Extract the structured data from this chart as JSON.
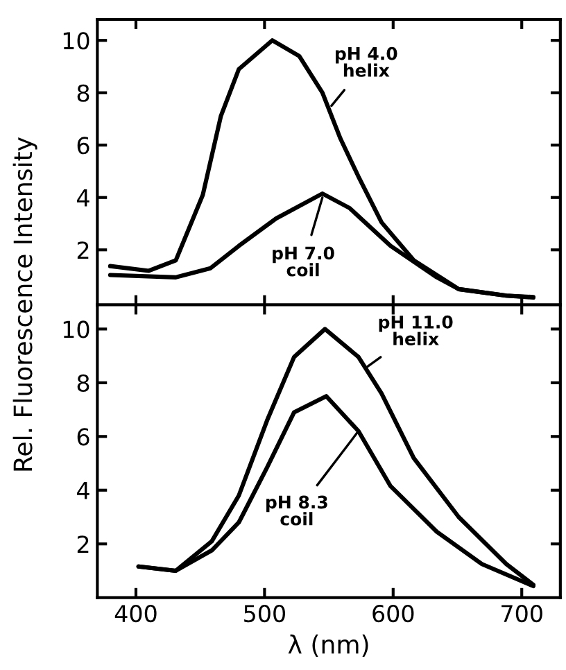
{
  "chart_data": [
    {
      "type": "line",
      "ylabel": "Rel. Fluorescence Intensity",
      "xlim": [
        370,
        730
      ],
      "xticks": [
        400,
        500,
        600,
        700
      ],
      "ylim": [
        -0.1,
        10.8
      ],
      "yticks": [
        2,
        4,
        6,
        8,
        10
      ],
      "tick_labels": "y",
      "grid": false,
      "series": [
        {
          "color": "#000000",
          "x": [
            380,
            410,
            431,
            452,
            466,
            480,
            506,
            527,
            545,
            559,
            573,
            591,
            616,
            651,
            688,
            709
          ],
          "values": [
            1.38,
            1.2,
            1.6,
            4.1,
            7.1,
            8.9,
            10.0,
            9.4,
            8.0,
            6.25,
            4.8,
            3.05,
            1.6,
            0.5,
            0.25,
            0.2
          ]
        },
        {
          "color": "#000000",
          "x": [
            380,
            431,
            458,
            480,
            509,
            545,
            566,
            598,
            634,
            651,
            688,
            709
          ],
          "values": [
            1.04,
            0.95,
            1.3,
            2.15,
            3.2,
            4.15,
            3.6,
            2.15,
            0.95,
            0.5,
            0.25,
            0.18
          ]
        }
      ],
      "annotations": [
        {
          "text": "pH 4.0\nhelix",
          "x": 552,
          "y": 7.5
        },
        {
          "text": "pH 7.0\ncoil",
          "x": 545,
          "y": 4.0
        }
      ]
    },
    {
      "type": "line",
      "xlabel": "λ (nm)",
      "xlim": [
        370,
        730
      ],
      "xticks": [
        400,
        500,
        600,
        700
      ],
      "ylim": [
        0,
        10.9
      ],
      "yticks": [
        2,
        4,
        6,
        8,
        10
      ],
      "grid": false,
      "series": [
        {
          "color": "#000000",
          "x": [
            402,
            431,
            459,
            480,
            502,
            523,
            547,
            573,
            591,
            616,
            651,
            688,
            709
          ],
          "values": [
            1.16,
            1.0,
            2.1,
            3.8,
            6.6,
            8.96,
            10.0,
            8.96,
            7.6,
            5.2,
            3.0,
            1.25,
            0.48
          ]
        },
        {
          "color": "#000000",
          "x": [
            402,
            431,
            459,
            480,
            502,
            523,
            548,
            573,
            598,
            634,
            669,
            709
          ],
          "values": [
            1.16,
            1.0,
            1.76,
            2.8,
            4.85,
            6.9,
            7.5,
            6.2,
            4.15,
            2.45,
            1.25,
            0.43
          ]
        }
      ],
      "annotations": [
        {
          "text": "pH 11.0\nhelix",
          "x": 580,
          "y": 8.6
        },
        {
          "text": "pH 8.3\ncoil",
          "x": 573,
          "y": 6.2
        }
      ]
    }
  ]
}
